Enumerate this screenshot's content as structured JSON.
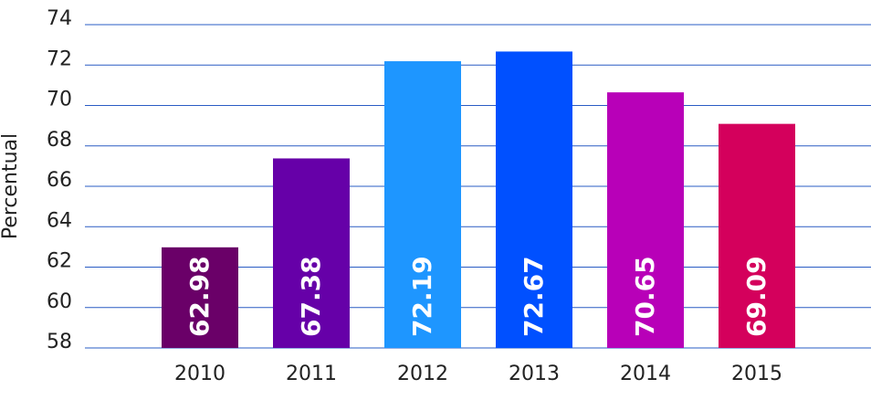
{
  "chart_data": {
    "type": "bar",
    "y_label": "Percentual",
    "categories": [
      "2010",
      "2011",
      "2012",
      "2013",
      "2014",
      "2015"
    ],
    "values": [
      62.98,
      67.38,
      72.19,
      72.67,
      70.65,
      69.09
    ],
    "colors": [
      "#6a0068",
      "#6600a8",
      "#1e96ff",
      "#0050ff",
      "#b800b8",
      "#d4005c"
    ],
    "ylim": [
      58,
      74
    ],
    "yticks": [
      58,
      60,
      62,
      64,
      66,
      68,
      70,
      72,
      74
    ],
    "grid": true
  }
}
